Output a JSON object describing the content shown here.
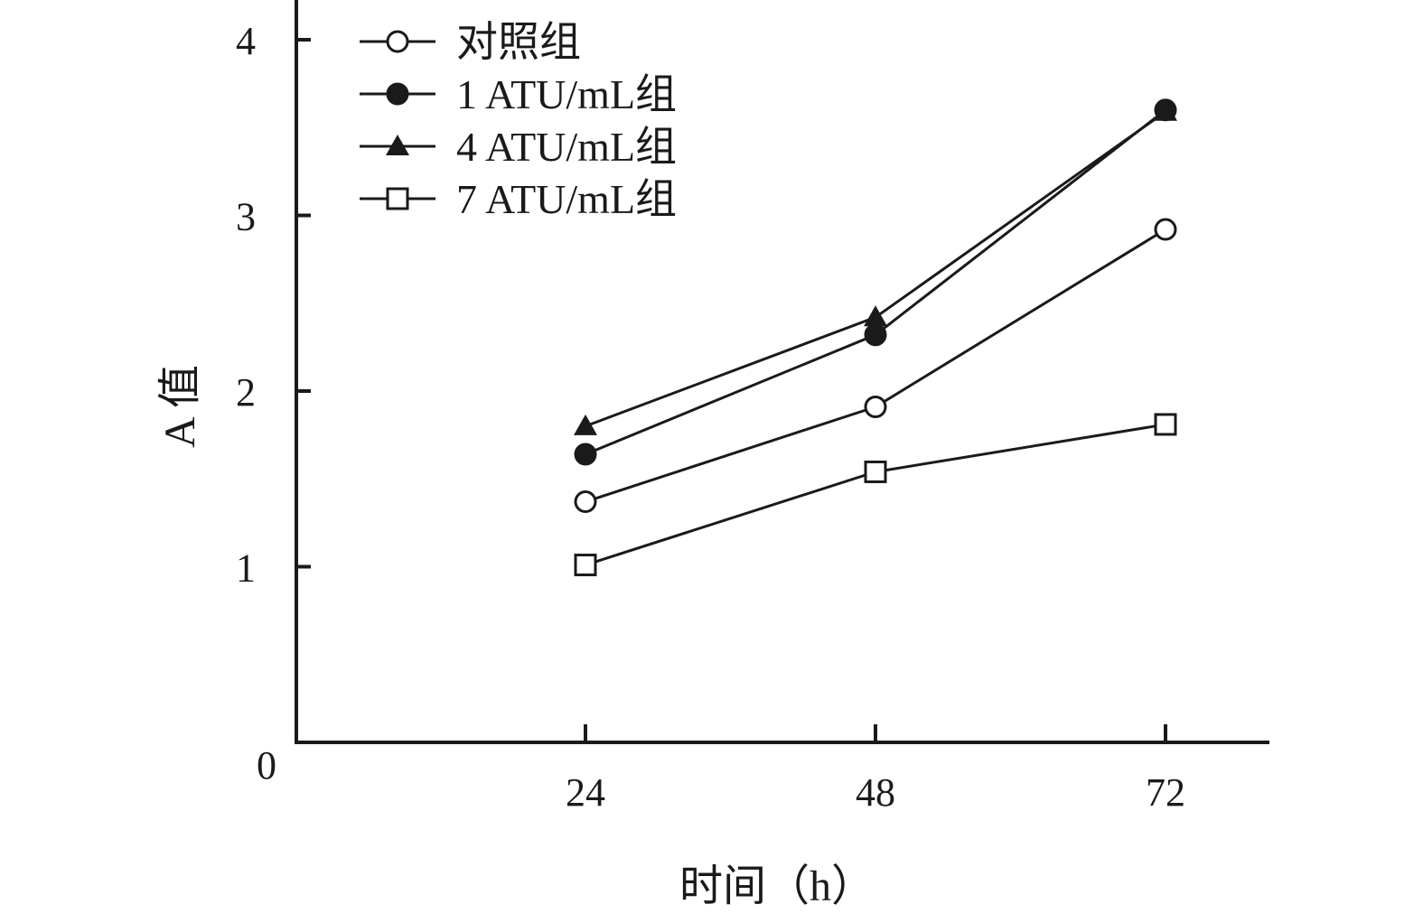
{
  "chart_data": {
    "type": "line",
    "xlabel": "时间（h）",
    "ylabel": "A 值",
    "categories": [
      "24",
      "48",
      "72"
    ],
    "yticks": [
      "0",
      "1",
      "2",
      "3",
      "4"
    ],
    "ylim": [
      0,
      4.2
    ],
    "grid": false,
    "legend_position": "top-left",
    "series": [
      {
        "name": "对照组",
        "marker": "open-circle",
        "values": [
          1.37,
          1.91,
          2.92
        ]
      },
      {
        "name": "1 ATU/mL组",
        "marker": "filled-circle",
        "values": [
          1.64,
          2.32,
          3.6
        ]
      },
      {
        "name": "4 ATU/mL组",
        "marker": "filled-triangle",
        "values": [
          1.8,
          2.42,
          3.59
        ]
      },
      {
        "name": "7 ATU/mL组",
        "marker": "open-square",
        "values": [
          1.01,
          1.54,
          1.81
        ]
      }
    ],
    "colors": {
      "line": "#1a1a1a",
      "background": "#ffffff"
    }
  }
}
